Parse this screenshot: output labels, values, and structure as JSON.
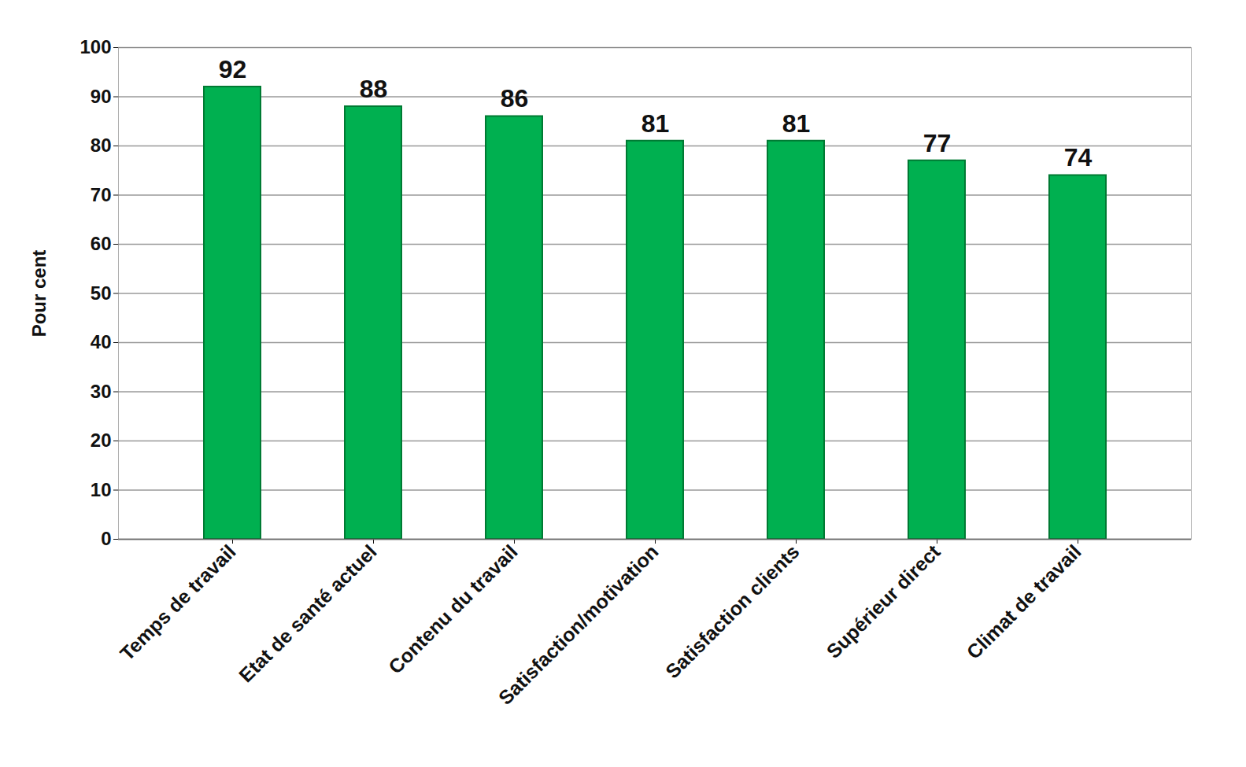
{
  "chart_data": {
    "type": "bar",
    "ylabel": "Pour cent",
    "categories": [
      "Temps de travail",
      "Etat de santé actuel",
      "Contenu du travail",
      "Satisfaction/motivation",
      "Satisfaction clients",
      "Supérieur direct",
      "Climat de travail"
    ],
    "values": [
      92,
      88,
      86,
      81,
      81,
      77,
      74
    ],
    "color": "#00b050",
    "ylim": [
      0,
      100
    ],
    "yticks": [
      0,
      10,
      20,
      30,
      40,
      50,
      60,
      70,
      80,
      90,
      100
    ],
    "grid": true,
    "data_labels": true
  }
}
